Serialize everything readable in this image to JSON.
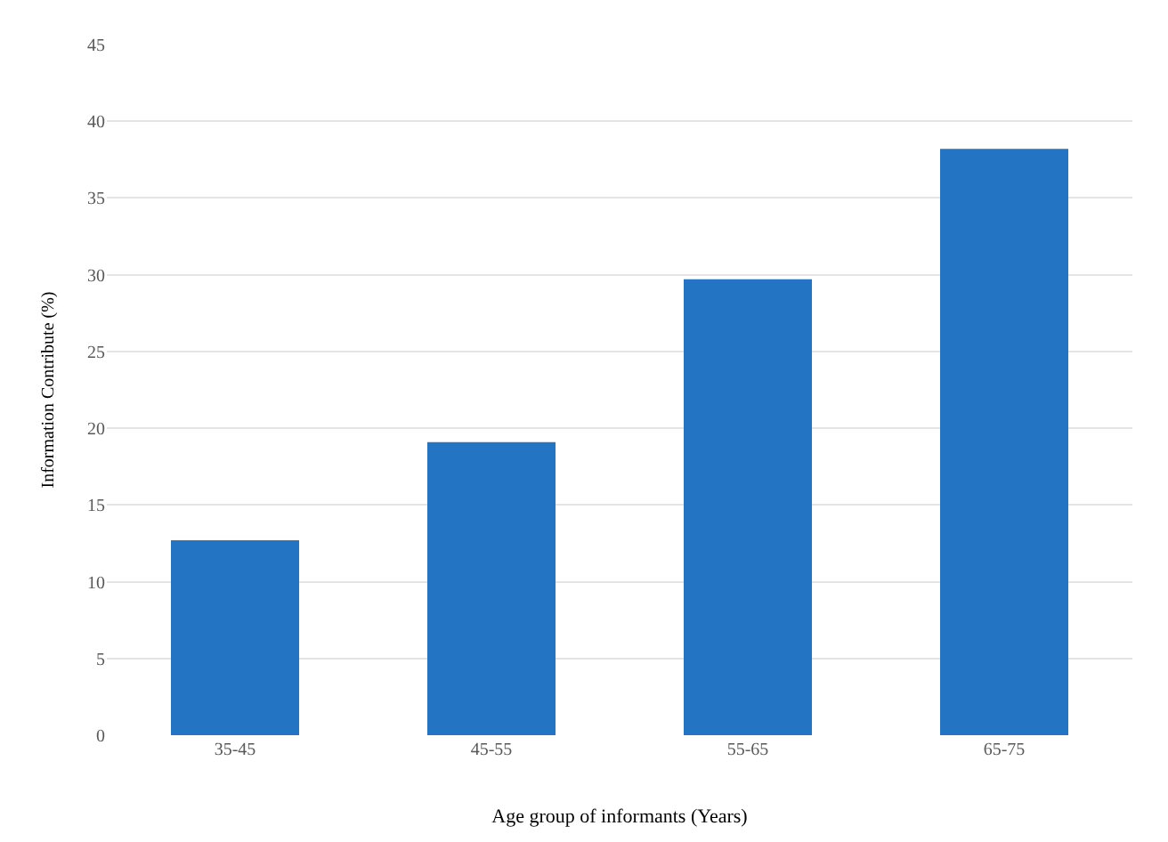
{
  "chart_data": {
    "type": "bar",
    "xlabel": "Age group of informants (Years)",
    "ylabel": "Information Contribute (%)",
    "categories": [
      "35-45",
      "45-55",
      "55-65",
      "65-75"
    ],
    "values": [
      12.7,
      19.1,
      29.7,
      38.2
    ],
    "color": "#2474c4",
    "ylim": [
      0,
      45
    ],
    "yticks": [
      0,
      5,
      10,
      15,
      20,
      25,
      30,
      35,
      40,
      45
    ],
    "grid": "y"
  }
}
